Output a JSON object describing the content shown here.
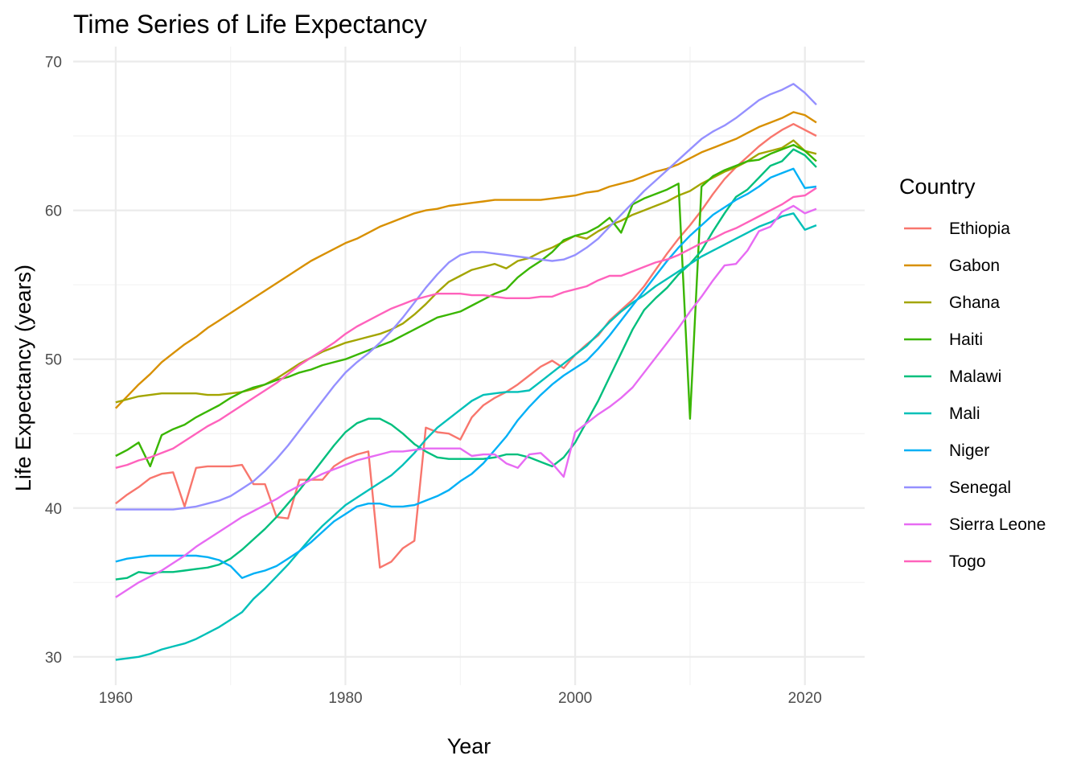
{
  "chart_data": {
    "type": "line",
    "title": "Time Series of Life Expectancy",
    "xlabel": "Year",
    "ylabel": "Life Expectancy (years)",
    "xlim": [
      1956.3,
      2025.2
    ],
    "ylim": [
      28.1,
      71.0
    ],
    "x_ticks": [
      1960,
      1980,
      2000,
      2020
    ],
    "y_ticks": [
      30,
      40,
      50,
      60,
      70
    ],
    "grid": true,
    "legend": {
      "title": "Country",
      "position": "right"
    },
    "x": [
      1960,
      1961,
      1962,
      1963,
      1964,
      1965,
      1966,
      1967,
      1968,
      1969,
      1970,
      1971,
      1972,
      1973,
      1974,
      1975,
      1976,
      1977,
      1978,
      1979,
      1980,
      1981,
      1982,
      1983,
      1984,
      1985,
      1986,
      1987,
      1988,
      1989,
      1990,
      1991,
      1992,
      1993,
      1994,
      1995,
      1996,
      1997,
      1998,
      1999,
      2000,
      2001,
      2002,
      2003,
      2004,
      2005,
      2006,
      2007,
      2008,
      2009,
      2010,
      2011,
      2012,
      2013,
      2014,
      2015,
      2016,
      2017,
      2018,
      2019,
      2020,
      2021
    ],
    "series": [
      {
        "name": "Ethiopia",
        "color": "#F8766D",
        "values": [
          40.3,
          40.9,
          41.4,
          42.0,
          42.3,
          42.4,
          40.1,
          42.7,
          42.8,
          42.8,
          42.8,
          42.9,
          41.6,
          41.6,
          39.4,
          39.3,
          41.9,
          41.9,
          41.9,
          42.8,
          43.3,
          43.6,
          43.8,
          36.0,
          36.4,
          37.3,
          37.8,
          45.4,
          45.1,
          45.0,
          44.6,
          46.1,
          46.9,
          47.4,
          47.8,
          48.3,
          48.9,
          49.5,
          49.9,
          49.4,
          50.3,
          51.0,
          51.6,
          52.6,
          53.3,
          54.0,
          54.9,
          56.0,
          57.1,
          58.1,
          59.0,
          60.0,
          61.1,
          62.1,
          62.9,
          63.6,
          64.3,
          64.9,
          65.4,
          65.8,
          65.4,
          65.0
        ]
      },
      {
        "name": "Gabon",
        "color": "#D89000",
        "values": [
          46.7,
          47.5,
          48.3,
          49.0,
          49.8,
          50.4,
          51.0,
          51.5,
          52.1,
          52.6,
          53.1,
          53.6,
          54.1,
          54.6,
          55.1,
          55.6,
          56.1,
          56.6,
          57.0,
          57.4,
          57.8,
          58.1,
          58.5,
          58.9,
          59.2,
          59.5,
          59.8,
          60.0,
          60.1,
          60.3,
          60.4,
          60.5,
          60.6,
          60.7,
          60.7,
          60.7,
          60.7,
          60.7,
          60.8,
          60.9,
          61.0,
          61.2,
          61.3,
          61.6,
          61.8,
          62.0,
          62.3,
          62.6,
          62.8,
          63.1,
          63.5,
          63.9,
          64.2,
          64.5,
          64.8,
          65.2,
          65.6,
          65.9,
          66.2,
          66.6,
          66.4,
          65.9
        ]
      },
      {
        "name": "Ghana",
        "color": "#A3A500",
        "values": [
          47.1,
          47.3,
          47.5,
          47.6,
          47.7,
          47.7,
          47.7,
          47.7,
          47.6,
          47.6,
          47.7,
          47.8,
          48.0,
          48.3,
          48.7,
          49.2,
          49.7,
          50.1,
          50.5,
          50.8,
          51.1,
          51.3,
          51.5,
          51.7,
          52.0,
          52.4,
          53.0,
          53.7,
          54.5,
          55.2,
          55.6,
          56.0,
          56.2,
          56.4,
          56.1,
          56.6,
          56.8,
          57.2,
          57.5,
          57.9,
          58.3,
          58.1,
          58.6,
          59.0,
          59.3,
          59.7,
          60.0,
          60.3,
          60.6,
          61.0,
          61.3,
          61.8,
          62.2,
          62.6,
          62.9,
          63.3,
          63.8,
          64.0,
          64.2,
          64.7,
          64.0,
          63.8
        ]
      },
      {
        "name": "Haiti",
        "color": "#39B600",
        "values": [
          43.5,
          43.9,
          44.4,
          42.8,
          44.9,
          45.3,
          45.6,
          46.1,
          46.5,
          46.9,
          47.4,
          47.8,
          48.1,
          48.3,
          48.6,
          48.8,
          49.1,
          49.3,
          49.6,
          49.8,
          50.0,
          50.3,
          50.6,
          50.9,
          51.2,
          51.6,
          52.0,
          52.4,
          52.8,
          53.0,
          53.2,
          53.6,
          54.0,
          54.4,
          54.7,
          55.5,
          56.1,
          56.6,
          57.2,
          58.0,
          58.3,
          58.5,
          58.9,
          59.5,
          58.5,
          60.4,
          60.8,
          61.1,
          61.4,
          61.8,
          46.0,
          61.6,
          62.3,
          62.7,
          63.0,
          63.3,
          63.4,
          63.8,
          64.1,
          64.4,
          64.0,
          63.3
        ]
      },
      {
        "name": "Malawi",
        "color": "#00BF7D",
        "values": [
          35.2,
          35.3,
          35.7,
          35.6,
          35.7,
          35.7,
          35.8,
          35.9,
          36.0,
          36.2,
          36.6,
          37.2,
          37.9,
          38.6,
          39.4,
          40.3,
          41.2,
          42.2,
          43.2,
          44.2,
          45.1,
          45.7,
          46.0,
          46.0,
          45.6,
          45.0,
          44.3,
          43.8,
          43.4,
          43.3,
          43.3,
          43.3,
          43.3,
          43.4,
          43.6,
          43.6,
          43.4,
          43.1,
          42.8,
          43.4,
          44.4,
          45.8,
          47.2,
          48.8,
          50.4,
          52.0,
          53.3,
          54.1,
          54.8,
          55.7,
          56.4,
          57.3,
          58.6,
          59.8,
          60.9,
          61.4,
          62.2,
          63.0,
          63.3,
          64.1,
          63.7,
          62.9
        ]
      },
      {
        "name": "Mali",
        "color": "#00C0B8",
        "values": [
          29.8,
          29.9,
          30.0,
          30.2,
          30.5,
          30.7,
          30.9,
          31.2,
          31.6,
          32.0,
          32.5,
          33.0,
          33.9,
          34.6,
          35.4,
          36.2,
          37.1,
          38.0,
          38.8,
          39.5,
          40.2,
          40.7,
          41.2,
          41.7,
          42.2,
          42.9,
          43.7,
          44.6,
          45.4,
          46.0,
          46.6,
          47.2,
          47.6,
          47.7,
          47.8,
          47.8,
          47.9,
          48.5,
          49.1,
          49.7,
          50.3,
          50.9,
          51.7,
          52.5,
          53.2,
          53.8,
          54.3,
          54.9,
          55.4,
          55.9,
          56.4,
          56.9,
          57.3,
          57.7,
          58.1,
          58.5,
          58.9,
          59.2,
          59.6,
          59.8,
          58.7,
          59.0
        ]
      },
      {
        "name": "Niger",
        "color": "#00B0F6",
        "values": [
          36.4,
          36.6,
          36.7,
          36.8,
          36.8,
          36.8,
          36.8,
          36.8,
          36.7,
          36.5,
          36.1,
          35.3,
          35.6,
          35.8,
          36.1,
          36.6,
          37.1,
          37.7,
          38.4,
          39.1,
          39.6,
          40.1,
          40.3,
          40.3,
          40.1,
          40.1,
          40.2,
          40.5,
          40.8,
          41.2,
          41.8,
          42.3,
          43.0,
          43.9,
          44.8,
          45.9,
          46.8,
          47.6,
          48.3,
          48.9,
          49.4,
          49.9,
          50.7,
          51.6,
          52.6,
          53.6,
          54.6,
          55.6,
          56.6,
          57.5,
          58.3,
          59.0,
          59.7,
          60.2,
          60.7,
          61.1,
          61.6,
          62.2,
          62.5,
          62.8,
          61.5,
          61.6
        ]
      },
      {
        "name": "Senegal",
        "color": "#9590FF",
        "values": [
          39.9,
          39.9,
          39.9,
          39.9,
          39.9,
          39.9,
          40.0,
          40.1,
          40.3,
          40.5,
          40.8,
          41.3,
          41.8,
          42.5,
          43.3,
          44.2,
          45.2,
          46.2,
          47.2,
          48.2,
          49.1,
          49.8,
          50.4,
          51.1,
          51.9,
          52.8,
          53.8,
          54.8,
          55.7,
          56.5,
          57.0,
          57.2,
          57.2,
          57.1,
          57.0,
          56.9,
          56.8,
          56.7,
          56.6,
          56.7,
          57.0,
          57.5,
          58.1,
          58.9,
          59.7,
          60.5,
          61.3,
          62.0,
          62.7,
          63.4,
          64.1,
          64.8,
          65.3,
          65.7,
          66.2,
          66.8,
          67.4,
          67.8,
          68.1,
          68.5,
          67.9,
          67.1
        ]
      },
      {
        "name": "Sierra Leone",
        "color": "#E76BF3",
        "values": [
          34.0,
          34.5,
          35.0,
          35.4,
          35.8,
          36.3,
          36.8,
          37.4,
          37.9,
          38.4,
          38.9,
          39.4,
          39.8,
          40.2,
          40.6,
          41.1,
          41.5,
          41.9,
          42.3,
          42.6,
          42.9,
          43.2,
          43.4,
          43.6,
          43.8,
          43.8,
          43.9,
          44.0,
          44.0,
          44.0,
          44.0,
          43.5,
          43.6,
          43.6,
          43.0,
          42.7,
          43.6,
          43.7,
          43.0,
          42.1,
          45.1,
          45.7,
          46.3,
          46.8,
          47.4,
          48.1,
          49.1,
          50.1,
          51.1,
          52.1,
          53.2,
          54.2,
          55.3,
          56.3,
          56.4,
          57.3,
          58.6,
          58.9,
          59.9,
          60.3,
          59.8,
          60.1
        ]
      },
      {
        "name": "Togo",
        "color": "#FF62BC",
        "values": [
          42.7,
          42.9,
          43.2,
          43.4,
          43.7,
          44.0,
          44.5,
          45.0,
          45.5,
          45.9,
          46.4,
          46.9,
          47.4,
          47.9,
          48.4,
          49.0,
          49.6,
          50.1,
          50.6,
          51.1,
          51.7,
          52.2,
          52.6,
          53.0,
          53.4,
          53.7,
          54.0,
          54.2,
          54.4,
          54.4,
          54.4,
          54.3,
          54.3,
          54.2,
          54.1,
          54.1,
          54.1,
          54.2,
          54.2,
          54.5,
          54.7,
          54.9,
          55.3,
          55.6,
          55.6,
          55.9,
          56.2,
          56.5,
          56.7,
          57.0,
          57.4,
          57.8,
          58.1,
          58.5,
          58.8,
          59.2,
          59.6,
          60.0,
          60.4,
          60.9,
          61.0,
          61.5
        ]
      }
    ]
  }
}
